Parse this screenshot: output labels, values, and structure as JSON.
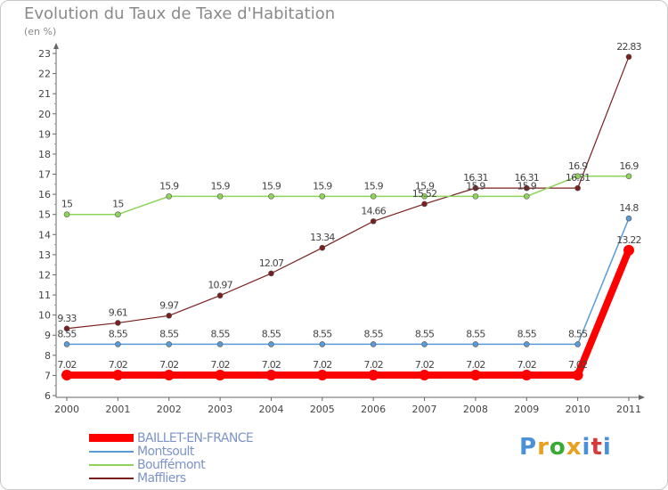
{
  "header": {
    "title": "Evolution du Taux de Taxe d'Habitation",
    "subtitle": "(en %)"
  },
  "logo": {
    "text": "Proxiti",
    "colors": [
      "#4a90d9",
      "#e8a020",
      "#3aaa35",
      "#e8a020",
      "#4a90d9",
      "#d63b3b",
      "#4a90d9"
    ]
  },
  "chart_data": {
    "type": "line",
    "title": "Evolution du Taux de Taxe d'Habitation",
    "ylabel": "(en %)",
    "xlabel": "",
    "x": [
      "2000",
      "2001",
      "2002",
      "2003",
      "2004",
      "2005",
      "2006",
      "2007",
      "2008",
      "2009",
      "2010",
      "2011"
    ],
    "ylim": [
      6,
      23
    ],
    "yticks": [
      6,
      7,
      8,
      9,
      10,
      11,
      12,
      13,
      14,
      15,
      16,
      17,
      18,
      19,
      20,
      21,
      22,
      23
    ],
    "grid": false,
    "legend_position": "bottom-left",
    "series": [
      {
        "name": "BAILLET-EN-FRANCE",
        "color": "#ff0000",
        "values": [
          7.02,
          7.02,
          7.02,
          7.02,
          7.02,
          7.02,
          7.02,
          7.02,
          7.02,
          7.02,
          7.02,
          13.22
        ],
        "labels": [
          "7.02",
          "7.02",
          "7.02",
          "7.02",
          "7.02",
          "7.02",
          "7.02",
          "7.02",
          "7.02",
          "7.02",
          "7.02",
          "13.22"
        ]
      },
      {
        "name": "Montsoult",
        "color": "#5a9bd5",
        "values": [
          8.55,
          8.55,
          8.55,
          8.55,
          8.55,
          8.55,
          8.55,
          8.55,
          8.55,
          8.55,
          8.55,
          14.8
        ],
        "labels": [
          "8.55",
          "8.55",
          "8.55",
          "8.55",
          "8.55",
          "8.55",
          "8.55",
          "8.55",
          "8.55",
          "8.55",
          "8.55",
          "14.8"
        ]
      },
      {
        "name": "Bouffémont",
        "color": "#8fd45a",
        "values": [
          15,
          15,
          15.9,
          15.9,
          15.9,
          15.9,
          15.9,
          15.9,
          15.9,
          15.9,
          16.9,
          16.9
        ],
        "labels": [
          "15",
          "15",
          "15.9",
          "15.9",
          "15.9",
          "15.9",
          "15.9",
          "15.9",
          "15.9",
          "15.9",
          "16.9",
          "16.9"
        ]
      },
      {
        "name": "Maffliers",
        "color": "#7a1f1f",
        "values": [
          9.33,
          9.61,
          9.97,
          10.97,
          12.07,
          13.34,
          14.66,
          15.52,
          16.31,
          16.31,
          16.31,
          22.83
        ],
        "labels": [
          "9.33",
          "9.61",
          "9.97",
          "10.97",
          "12.07",
          "13.34",
          "14.66",
          "15.52",
          "16.31",
          "16.31",
          "16.31",
          "22.83"
        ]
      }
    ]
  }
}
